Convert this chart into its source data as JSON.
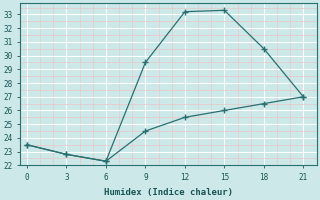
{
  "xlabel": "Humidex (Indice chaleur)",
  "bg_color": "#cce8e8",
  "grid_major_color": "#ffffff",
  "grid_minor_color": "#e8c8c8",
  "line_color": "#2a7070",
  "line1_x": [
    0,
    3,
    6,
    9,
    12,
    15,
    18,
    21
  ],
  "line1_y": [
    23.5,
    22.8,
    22.3,
    29.5,
    33.2,
    33.3,
    30.5,
    27.0
  ],
  "line2_x": [
    0,
    3,
    6,
    9,
    12,
    15,
    18,
    21
  ],
  "line2_y": [
    23.5,
    22.8,
    22.3,
    24.5,
    25.5,
    26.0,
    26.5,
    27.0
  ],
  "xlim": [
    -0.5,
    22
  ],
  "ylim": [
    22,
    33.8
  ],
  "xticks": [
    0,
    3,
    6,
    9,
    12,
    15,
    18,
    21
  ],
  "yticks": [
    22,
    23,
    24,
    25,
    26,
    27,
    28,
    29,
    30,
    31,
    32,
    33
  ],
  "marker": "+",
  "markersize": 4,
  "linewidth": 0.9
}
